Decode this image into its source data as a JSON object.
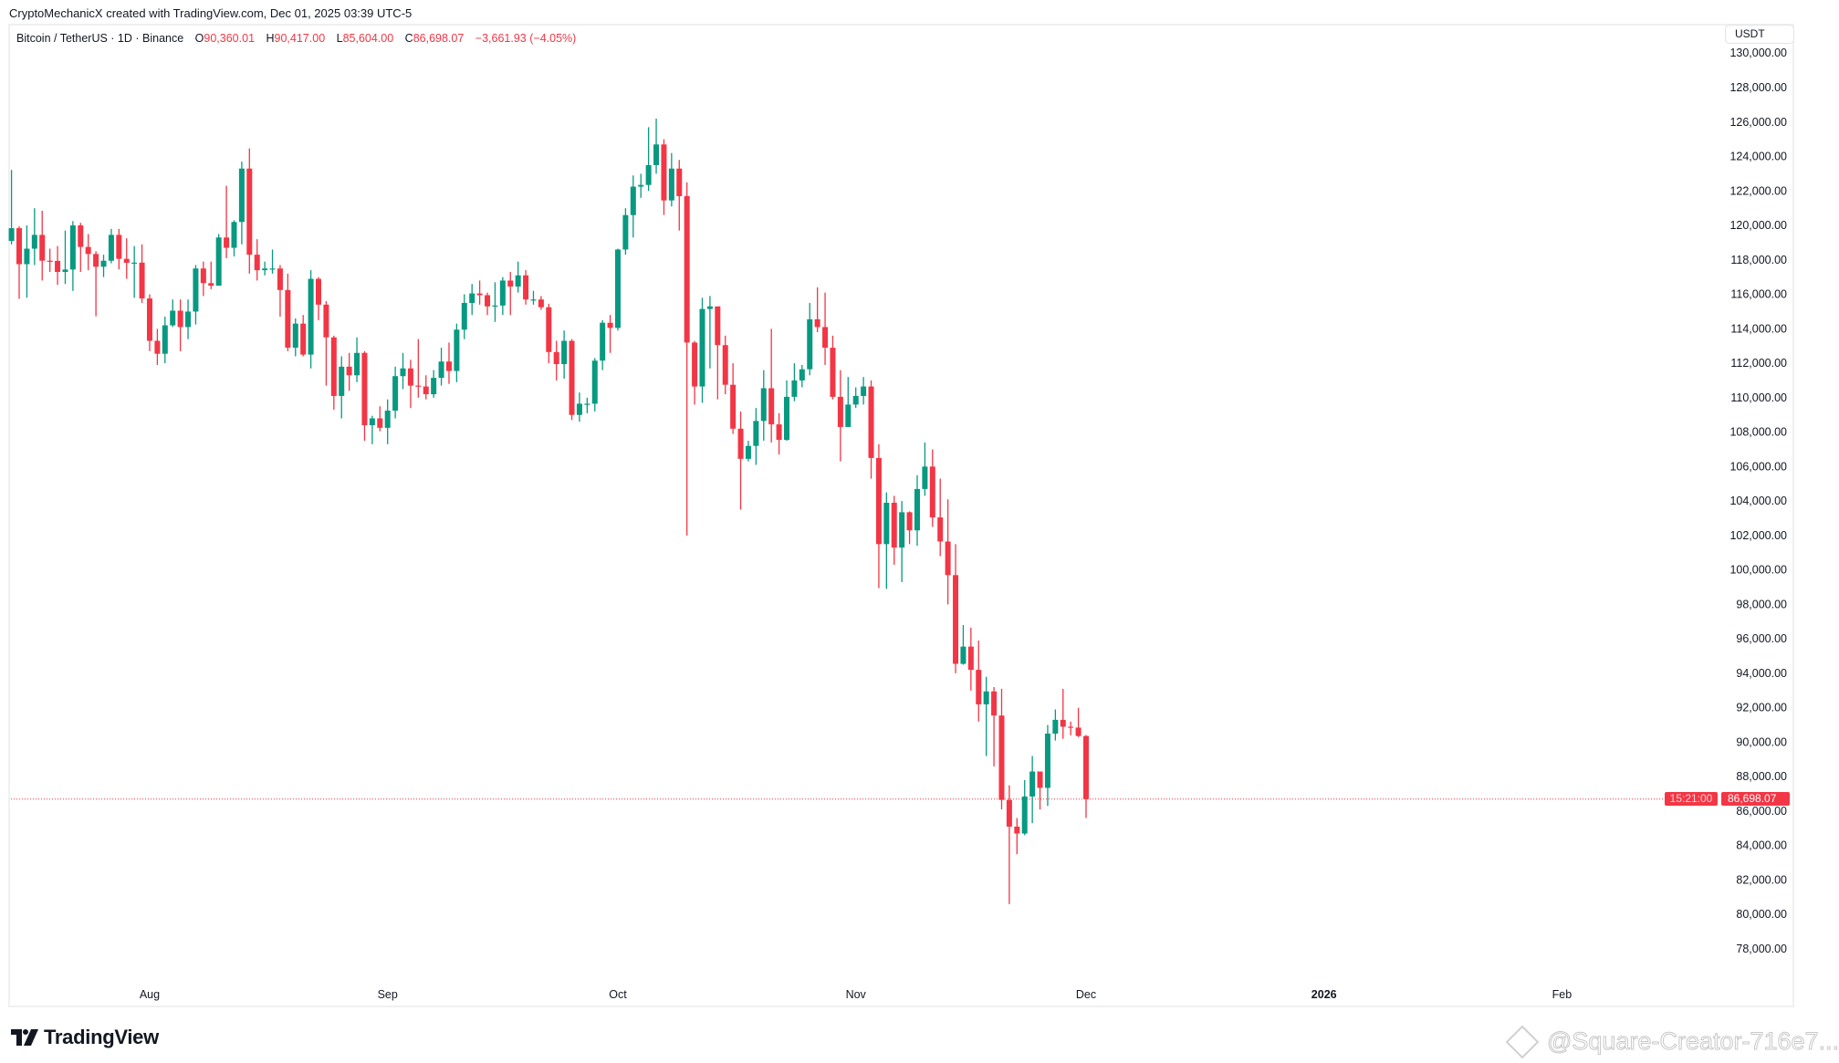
{
  "header": {
    "credit": "CryptoMechanicX created with TradingView.com, Dec 01, 2025 03:39 UTC-5"
  },
  "legend": {
    "symbol": "Bitcoin / TetherUS · 1D · Binance",
    "o_label": "O",
    "o_value": "90,360.01",
    "h_label": "H",
    "h_value": "90,417.00",
    "l_label": "L",
    "l_value": "85,604.00",
    "c_label": "C",
    "c_value": "86,698.07",
    "change": "−3,661.93 (−4.05%)"
  },
  "price_axis": {
    "currency": "USDT",
    "labels": [
      "130,000.00",
      "128,000.00",
      "126,000.00",
      "124,000.00",
      "122,000.00",
      "120,000.00",
      "118,000.00",
      "116,000.00",
      "114,000.00",
      "112,000.00",
      "110,000.00",
      "108,000.00",
      "106,000.00",
      "104,000.00",
      "102,000.00",
      "100,000.00",
      "98,000.00",
      "96,000.00",
      "94,000.00",
      "92,000.00",
      "90,000.00",
      "88,000.00",
      "86,000.00",
      "84,000.00",
      "82,000.00",
      "80,000.00",
      "78,000.00"
    ],
    "current_price": "86,698.07",
    "countdown": "15:21:00"
  },
  "time_axis": {
    "labels": [
      {
        "text": "Aug",
        "day_index": 18,
        "bold": false
      },
      {
        "text": "Sep",
        "day_index": 49,
        "bold": false
      },
      {
        "text": "Oct",
        "day_index": 79,
        "bold": false
      },
      {
        "text": "Nov",
        "day_index": 110,
        "bold": false
      },
      {
        "text": "Dec",
        "day_index": 140,
        "bold": false
      },
      {
        "text": "2026",
        "day_index": 171,
        "bold": true
      },
      {
        "text": "Feb",
        "day_index": 202,
        "bold": false
      }
    ]
  },
  "footer": {
    "logo_text": "TradingView",
    "watermark": "@Square-Creator-716e7..."
  },
  "colors": {
    "up": "#089981",
    "down": "#f23645",
    "text": "#131722"
  },
  "chart_data": {
    "type": "candlestick",
    "title": "Bitcoin / TetherUS · 1D · Binance",
    "ylabel": "USDT",
    "ylim": [
      77000,
      131000
    ],
    "start_date": "2025-07-14",
    "end_date": "2025-12-01",
    "first_open": 119100,
    "last_open": 90360.01,
    "closes": [
      119840,
      117750,
      118650,
      119450,
      117950,
      117940,
      117300,
      117440,
      120000,
      118750,
      118340,
      117600,
      117950,
      119450,
      118060,
      117830,
      117840,
      115760,
      113300,
      112550,
      114200,
      115050,
      114100,
      115000,
      117500,
      116650,
      116500,
      119300,
      118700,
      120200,
      123300,
      118300,
      117400,
      117500,
      117500,
      116250,
      112900,
      114300,
      112500,
      116900,
      115400,
      113500,
      110100,
      111800,
      111300,
      112600,
      108400,
      108800,
      108250,
      109250,
      111250,
      111700,
      110700,
      110650,
      110200,
      111150,
      112100,
      111550,
      113950,
      115500,
      116050,
      115950,
      115300,
      115350,
      116800,
      116450,
      117100,
      115700,
      115700,
      115250,
      112650,
      111950,
      113300,
      109000,
      109650,
      109650,
      112150,
      114350,
      114050,
      118600,
      120600,
      122250,
      122350,
      123500,
      124700,
      121450,
      123300,
      121700,
      113200,
      110650,
      115150,
      115300,
      113050,
      110750,
      108200,
      106450,
      107200,
      108650,
      110550,
      108450,
      107550,
      110050,
      111000,
      111650,
      114550,
      114100,
      112900,
      110050,
      108300,
      109600,
      110100,
      110650,
      106500,
      101500,
      103900,
      101300,
      103350,
      102300,
      104700,
      106000,
      103050,
      101650,
      99700,
      94550,
      95550,
      94200,
      92200,
      92950,
      91550,
      86650,
      85100,
      84700,
      86850,
      88300,
      87350,
      90500,
      91300,
      90900,
      90850,
      90360,
      86698.07
    ],
    "highs": [
      123218,
      119950,
      120000,
      120998,
      120850,
      118650,
      118800,
      119700,
      120250,
      120150,
      119500,
      118500,
      118300,
      119800,
      119800,
      119250,
      118800,
      118900,
      116000,
      114000,
      114700,
      115700,
      115700,
      115700,
      117700,
      117900,
      117900,
      119500,
      122300,
      120300,
      123700,
      124474,
      119200,
      117900,
      118600,
      117700,
      117200,
      114600,
      114800,
      117400,
      117000,
      115600,
      113600,
      112400,
      112600,
      113500,
      112700,
      108950,
      109500,
      109900,
      111800,
      112600,
      112200,
      113400,
      111300,
      111600,
      112900,
      113200,
      114300,
      116000,
      116600,
      116800,
      116100,
      116700,
      117000,
      117300,
      117900,
      117400,
      116200,
      115900,
      115450,
      113300,
      113900,
      113400,
      110300,
      110000,
      112300,
      114500,
      114800,
      118650,
      121000,
      122900,
      123000,
      125700,
      126200,
      125000,
      124200,
      123800,
      122500,
      113300,
      115800,
      115900,
      115000,
      113600,
      112000,
      109200,
      107500,
      109400,
      111600,
      114000,
      109100,
      111000,
      112000,
      111900,
      115500,
      116400,
      116100,
      113600,
      111600,
      111200,
      110600,
      111200,
      111000,
      107300,
      104500,
      104300,
      104000,
      103400,
      105500,
      107400,
      107000,
      105300,
      104100,
      101500,
      96800,
      96650,
      95900,
      93800,
      93200,
      93100,
      87500,
      85600,
      87800,
      89200,
      88200,
      91000,
      91900,
      93100,
      91200,
      92000,
      90417
    ],
    "lows": [
      118900,
      115736,
      115800,
      117700,
      116800,
      117300,
      116550,
      116600,
      116200,
      117300,
      117400,
      114723,
      117000,
      117800,
      117450,
      116900,
      115800,
      115500,
      112700,
      111900,
      112000,
      114100,
      112700,
      113400,
      114250,
      115900,
      116300,
      116500,
      118100,
      118200,
      118900,
      117200,
      116800,
      117100,
      117200,
      114700,
      112700,
      112400,
      112400,
      111700,
      114500,
      110700,
      109300,
      108800,
      110400,
      110900,
      107500,
      107300,
      108050,
      107300,
      108800,
      110500,
      109400,
      110000,
      109900,
      110000,
      110700,
      110800,
      110900,
      113400,
      114800,
      115400,
      114800,
      114400,
      114800,
      114800,
      116100,
      115400,
      115400,
      115100,
      112000,
      111000,
      111100,
      108700,
      108600,
      109100,
      109200,
      111600,
      112600,
      113900,
      118300,
      119300,
      121600,
      122000,
      123000,
      120600,
      121100,
      119700,
      102000,
      109600,
      109700,
      111700,
      109900,
      110200,
      107900,
      103500,
      106300,
      106100,
      107500,
      107400,
      106700,
      107500,
      109800,
      110600,
      111300,
      113800,
      111900,
      109900,
      106300,
      108700,
      109400,
      109600,
      105300,
      98950,
      98900,
      100300,
      99300,
      101500,
      101400,
      104300,
      102500,
      100800,
      98000,
      94000,
      94500,
      93000,
      91200,
      89200,
      88600,
      86100,
      80600,
      83500,
      84600,
      85300,
      86100,
      86300,
      90100,
      90200,
      90400,
      90300,
      85604
    ]
  }
}
